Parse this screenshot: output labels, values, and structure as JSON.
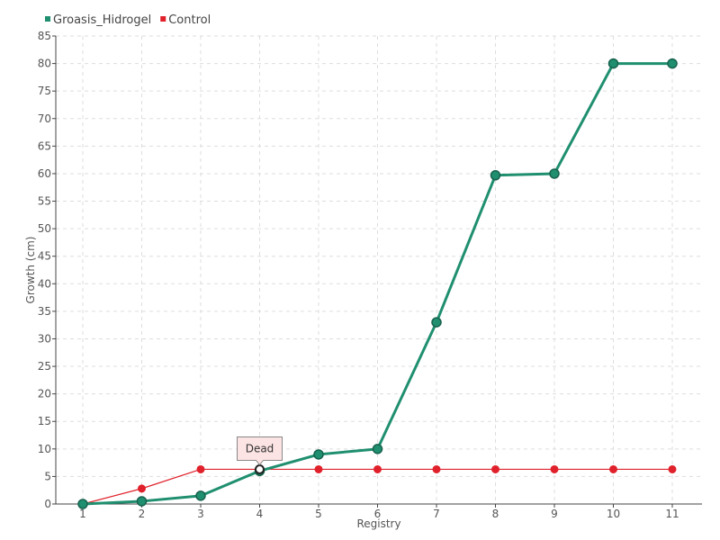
{
  "chart_data": {
    "type": "line",
    "xlabel": "Registry",
    "ylabel": "Growth (cm)",
    "categories": [
      "1",
      "2",
      "3",
      "4",
      "5",
      "6",
      "7",
      "8",
      "9",
      "10",
      "11"
    ],
    "ylim": [
      0,
      85
    ],
    "yticks": [
      0,
      5,
      10,
      15,
      20,
      25,
      30,
      35,
      40,
      45,
      50,
      55,
      60,
      65,
      70,
      75,
      80,
      85
    ],
    "grid": true,
    "legend_position": "top-left",
    "series": [
      {
        "name": "Groasis_Hidrogel",
        "color": "#1f8f6f",
        "values": [
          0,
          0.5,
          1.5,
          6,
          9,
          10,
          33,
          59.7,
          60,
          80,
          80
        ]
      },
      {
        "name": "Control",
        "color": "#e0202a",
        "values": [
          0,
          2.8,
          6.3,
          6.3,
          6.3,
          6.3,
          6.3,
          6.3,
          6.3,
          6.3,
          6.3
        ]
      }
    ],
    "annotations": [
      {
        "text": "Dead",
        "series": 1,
        "x_index": 3
      }
    ]
  }
}
